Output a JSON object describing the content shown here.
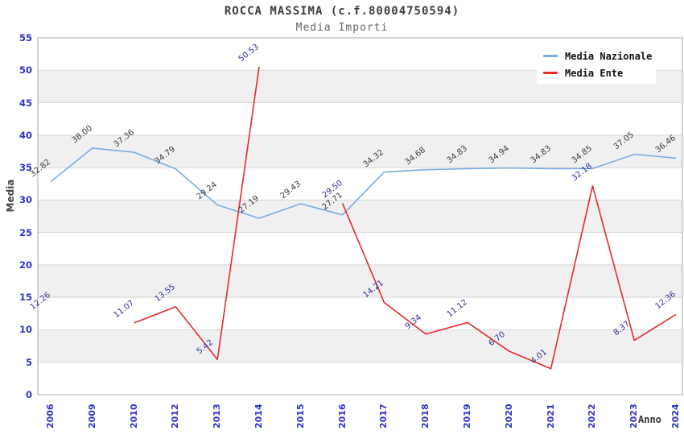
{
  "header": {
    "title": "ROCCA MASSIMA (c.f.80004750594)",
    "subtitle": "Media Importi"
  },
  "legend": {
    "items": [
      {
        "label": "Media Nazionale",
        "color": "#79ade0"
      },
      {
        "label": "Media Ente",
        "color": "#e62b2b"
      }
    ]
  },
  "chart_data": {
    "type": "line",
    "title": "ROCCA MASSIMA (c.f.80004750594)",
    "subtitle": "Media Importi",
    "xlabel": "Anno",
    "ylabel": "Media",
    "categories": [
      "2006",
      "2009",
      "2010",
      "2012",
      "2013",
      "2014",
      "2015",
      "2016",
      "2017",
      "2018",
      "2019",
      "2020",
      "2021",
      "2022",
      "2023",
      "2024"
    ],
    "ylim": [
      0,
      55
    ],
    "ytick_step": 5,
    "grid": true,
    "band_colors": [
      "#ffffff",
      "#f0f0f0"
    ],
    "legend_position": "top-right",
    "axis_tick_color": "#3232cc",
    "series": [
      {
        "name": "Media Nazionale",
        "color": "#79ade0",
        "label_color": "#3c3c3c",
        "values": [
          32.82,
          38.0,
          37.36,
          34.79,
          29.24,
          27.19,
          29.43,
          27.71,
          34.32,
          34.68,
          34.83,
          34.94,
          34.83,
          34.85,
          37.05,
          36.46
        ],
        "labels": [
          "32.82",
          "38.00",
          "37.36",
          "34.79",
          "29.24",
          "27.19",
          "29.43",
          "27.71",
          "34.32",
          "34.68",
          "34.83",
          "34.94",
          "34.83",
          "34.85",
          "37.05",
          "36.46"
        ]
      },
      {
        "name": "Media Ente",
        "color": "#e62b2b",
        "label_color": "#333399",
        "values": [
          12.26,
          null,
          11.07,
          13.55,
          5.42,
          50.53,
          null,
          29.5,
          14.21,
          9.34,
          11.12,
          6.7,
          4.01,
          32.18,
          8.37,
          12.36
        ],
        "labels": [
          "12.26",
          null,
          "11.07",
          "13.55",
          "5.42",
          "50.53",
          null,
          "29.50",
          "14.21",
          "9.34",
          "11.12",
          "6.70",
          "4.01",
          "32.18",
          "8.37",
          "12.36"
        ]
      }
    ]
  }
}
